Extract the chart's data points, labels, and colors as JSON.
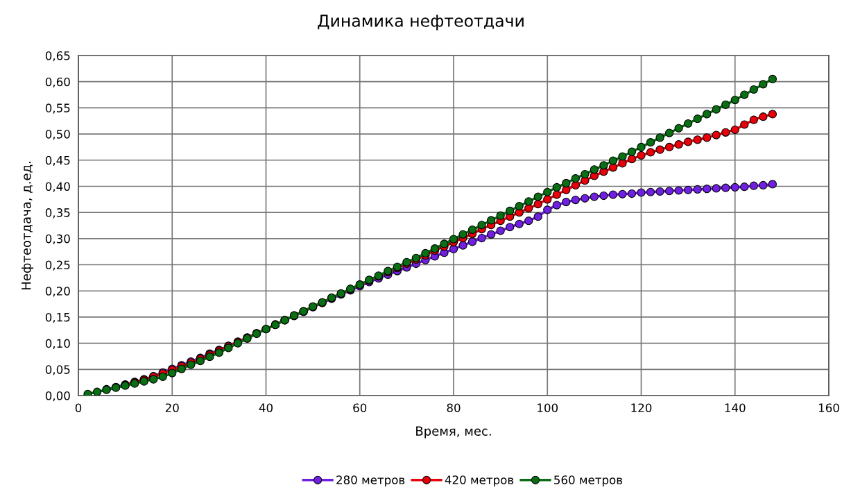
{
  "chart_data": {
    "type": "line",
    "title": "Динамика нефтеотдачи",
    "xlabel": "Время, мес.",
    "ylabel": "Нефтеотдача, д.ед.",
    "x": [
      2,
      4,
      6,
      8,
      10,
      12,
      14,
      16,
      18,
      20,
      22,
      24,
      26,
      28,
      30,
      32,
      34,
      36,
      38,
      40,
      42,
      44,
      46,
      48,
      50,
      52,
      54,
      56,
      58,
      60,
      62,
      64,
      66,
      68,
      70,
      72,
      74,
      76,
      78,
      80,
      82,
      84,
      86,
      88,
      90,
      92,
      94,
      96,
      98,
      100,
      102,
      104,
      106,
      108,
      110,
      112,
      114,
      116,
      118,
      120,
      122,
      124,
      126,
      128,
      130,
      132,
      134,
      136,
      138,
      140,
      142,
      144,
      146,
      148
    ],
    "series": [
      {
        "name": "280 метров",
        "color": "#7020e0",
        "values": [
          null,
          null,
          0.012,
          0.016,
          0.021,
          0.026,
          0.031,
          0.037,
          0.044,
          0.051,
          0.058,
          0.065,
          0.072,
          0.08,
          0.087,
          0.095,
          0.103,
          0.111,
          0.119,
          0.127,
          0.135,
          0.144,
          0.152,
          0.16,
          0.169,
          0.177,
          0.185,
          0.193,
          0.201,
          0.209,
          0.217,
          0.224,
          0.231,
          0.238,
          0.245,
          0.252,
          0.259,
          0.266,
          0.273,
          0.28,
          0.287,
          0.294,
          0.301,
          0.308,
          0.315,
          0.322,
          0.328,
          0.334,
          0.342,
          0.355,
          0.364,
          0.37,
          0.374,
          0.377,
          0.38,
          0.382,
          0.384,
          0.385,
          0.386,
          0.388,
          0.389,
          0.39,
          0.391,
          0.392,
          0.393,
          0.394,
          0.395,
          0.396,
          0.397,
          0.398,
          0.399,
          0.401,
          0.402,
          0.404
        ]
      },
      {
        "name": "420 метров",
        "color": "#e8000a",
        "values": [
          null,
          null,
          null,
          null,
          0.02,
          0.025,
          0.03,
          0.036,
          0.042,
          0.049,
          0.056,
          0.063,
          0.07,
          0.078,
          0.086,
          0.094,
          0.102,
          0.11,
          0.119,
          0.127,
          0.136,
          0.144,
          0.153,
          0.161,
          0.17,
          0.178,
          0.187,
          0.195,
          0.203,
          0.212,
          0.22,
          0.228,
          0.236,
          0.244,
          0.252,
          0.26,
          0.268,
          0.277,
          0.285,
          0.293,
          0.301,
          0.309,
          0.318,
          0.326,
          0.334,
          0.342,
          0.35,
          0.358,
          0.366,
          0.375,
          0.384,
          0.393,
          0.402,
          0.411,
          0.42,
          0.428,
          0.436,
          0.444,
          0.452,
          0.459,
          0.465,
          0.47,
          0.475,
          0.48,
          0.485,
          0.489,
          0.493,
          0.498,
          0.503,
          0.508,
          0.518,
          0.527,
          0.533,
          0.538
        ]
      },
      {
        "name": "560 метров",
        "color": "#0a6e14",
        "values": [
          0.003,
          0.007,
          0.011,
          0.015,
          0.019,
          0.023,
          0.027,
          0.031,
          0.036,
          0.043,
          0.051,
          0.059,
          0.066,
          0.074,
          0.082,
          0.091,
          0.1,
          0.109,
          0.118,
          0.127,
          0.135,
          0.144,
          0.153,
          0.161,
          0.17,
          0.178,
          0.187,
          0.195,
          0.204,
          0.212,
          0.221,
          0.229,
          0.238,
          0.246,
          0.255,
          0.263,
          0.272,
          0.281,
          0.29,
          0.299,
          0.308,
          0.317,
          0.326,
          0.335,
          0.344,
          0.353,
          0.362,
          0.371,
          0.38,
          0.389,
          0.398,
          0.406,
          0.415,
          0.423,
          0.432,
          0.44,
          0.449,
          0.457,
          0.466,
          0.475,
          0.484,
          0.493,
          0.502,
          0.511,
          0.52,
          0.529,
          0.538,
          0.547,
          0.556,
          0.565,
          0.575,
          0.585,
          0.595,
          0.605
        ]
      }
    ],
    "xlim": [
      0,
      160
    ],
    "xticks": [
      0,
      20,
      40,
      60,
      80,
      100,
      120,
      140,
      160
    ],
    "ylim": [
      0,
      0.65
    ],
    "yticks": [
      {
        "value": 0,
        "label": "0,00"
      },
      {
        "value": 0.05,
        "label": "0,05"
      },
      {
        "value": 0.1,
        "label": "0,10"
      },
      {
        "value": 0.15,
        "label": "0,15"
      },
      {
        "value": 0.2,
        "label": "0,20"
      },
      {
        "value": 0.25,
        "label": "0,25"
      },
      {
        "value": 0.3,
        "label": "0,30"
      },
      {
        "value": 0.35,
        "label": "0,35"
      },
      {
        "value": 0.4,
        "label": "0,40"
      },
      {
        "value": 0.45,
        "label": "0,45"
      },
      {
        "value": 0.5,
        "label": "0,50"
      },
      {
        "value": 0.55,
        "label": "0,55"
      },
      {
        "value": 0.6,
        "label": "0,60"
      },
      {
        "value": 0.65,
        "label": "0,65"
      }
    ],
    "grid": true,
    "legend": "bottom",
    "marker": "circle",
    "line_style": "solid"
  }
}
